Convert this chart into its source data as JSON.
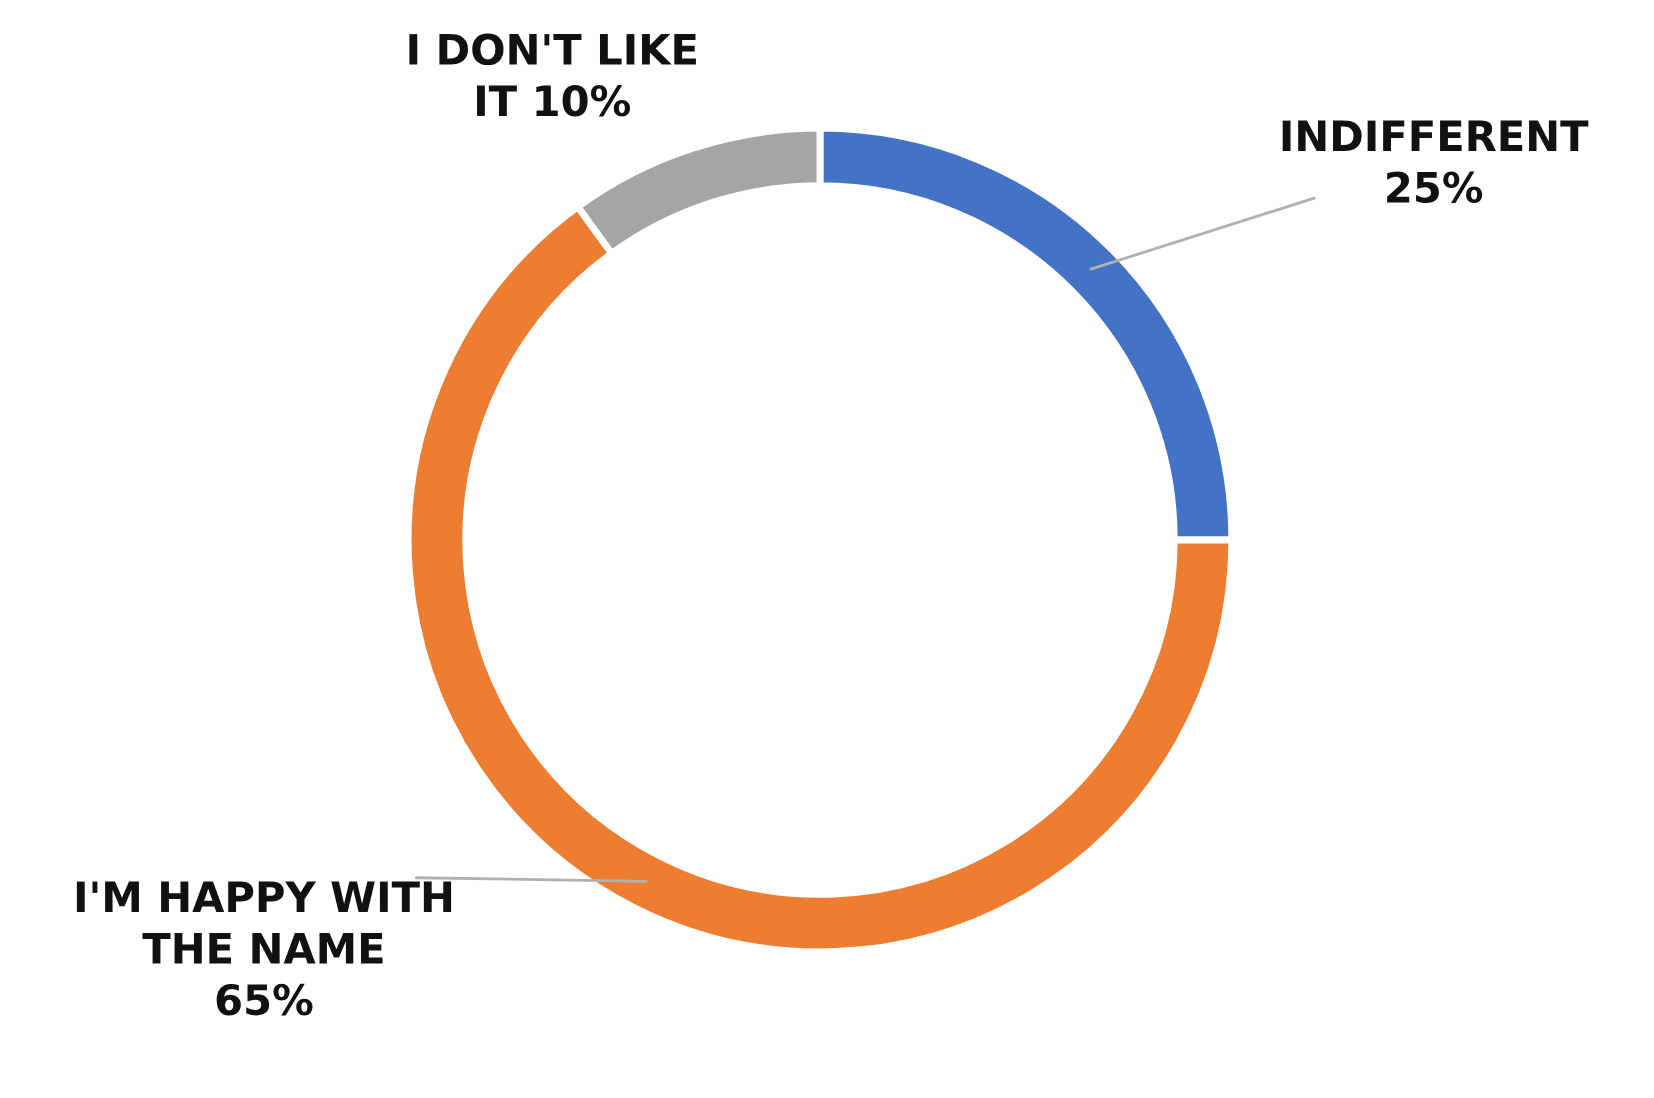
{
  "chart_data": {
    "type": "donut",
    "categories": [
      "INDIFFERENT",
      "I'M HAPPY WITH THE NAME",
      "I DON'T LIKE IT"
    ],
    "values": [
      25,
      65,
      10
    ],
    "colors": [
      "#4472c4",
      "#ed7d31",
      "#a5a5a5"
    ],
    "value_labels": [
      "25%",
      "65%",
      "10%"
    ]
  }
}
